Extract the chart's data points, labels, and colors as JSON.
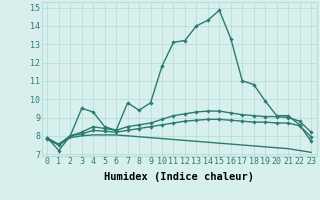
{
  "xlabel": "Humidex (Indice chaleur)",
  "x": [
    0,
    1,
    2,
    3,
    4,
    5,
    6,
    7,
    8,
    9,
    10,
    11,
    12,
    13,
    14,
    15,
    16,
    17,
    18,
    19,
    20,
    21,
    22,
    23
  ],
  "line_max": [
    7.9,
    7.2,
    8.0,
    9.5,
    9.3,
    8.5,
    8.3,
    9.8,
    9.4,
    9.8,
    11.8,
    13.1,
    13.2,
    14.0,
    14.3,
    14.85,
    13.3,
    11.0,
    10.8,
    9.9,
    9.1,
    9.1,
    8.6,
    7.7
  ],
  "line_upper": [
    7.9,
    7.5,
    8.0,
    8.2,
    8.5,
    8.4,
    8.3,
    8.5,
    8.6,
    8.7,
    8.9,
    9.1,
    9.2,
    9.3,
    9.35,
    9.35,
    9.25,
    9.15,
    9.1,
    9.05,
    9.05,
    9.0,
    8.8,
    8.2
  ],
  "line_lower": [
    7.85,
    7.55,
    8.0,
    8.1,
    8.3,
    8.25,
    8.2,
    8.3,
    8.4,
    8.5,
    8.6,
    8.7,
    8.8,
    8.85,
    8.9,
    8.9,
    8.85,
    8.8,
    8.75,
    8.75,
    8.7,
    8.7,
    8.55,
    7.95
  ],
  "line_min": [
    7.8,
    7.5,
    7.9,
    8.0,
    8.05,
    8.05,
    8.05,
    8.0,
    7.95,
    7.9,
    7.85,
    7.8,
    7.75,
    7.7,
    7.65,
    7.6,
    7.55,
    7.5,
    7.45,
    7.4,
    7.35,
    7.3,
    7.2,
    7.1
  ],
  "line_color": "#2d7a6e",
  "bg_color": "#d8f0ed",
  "grid_color": "#b8ddd8",
  "ylim": [
    6.9,
    15.3
  ],
  "xlim": [
    -0.5,
    23.5
  ],
  "yticks": [
    7,
    8,
    9,
    10,
    11,
    12,
    13,
    14,
    15
  ],
  "xticks": [
    0,
    1,
    2,
    3,
    4,
    5,
    6,
    7,
    8,
    9,
    10,
    11,
    12,
    13,
    14,
    15,
    16,
    17,
    18,
    19,
    20,
    21,
    22,
    23
  ],
  "marker": "D",
  "markersize": 2.2,
  "linewidth": 1.0,
  "tick_fontsize": 6,
  "label_fontsize": 7.5
}
